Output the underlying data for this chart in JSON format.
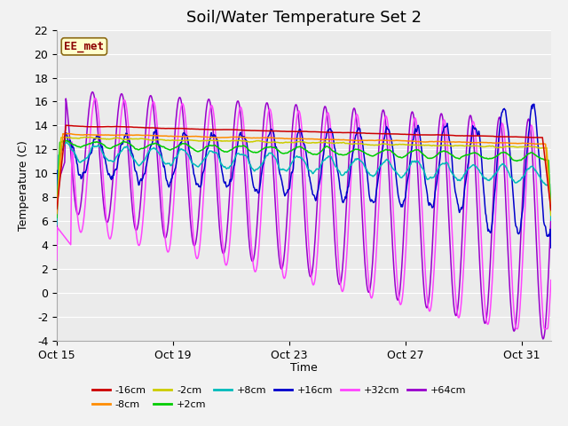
{
  "title": "Soil/Water Temperature Set 2",
  "xlabel": "Time",
  "ylabel": "Temperature (C)",
  "ylim": [
    -4,
    22
  ],
  "xlim": [
    0,
    17
  ],
  "yticks": [
    -4,
    -2,
    0,
    2,
    4,
    6,
    8,
    10,
    12,
    14,
    16,
    18,
    20,
    22
  ],
  "xtick_labels": [
    "Oct 15",
    "Oct 19",
    "Oct 23",
    "Oct 27",
    "Oct 31"
  ],
  "xtick_positions": [
    0,
    4,
    8,
    12,
    16
  ],
  "annotation_text": "EE_met",
  "annotation_bg": "#FFFFCC",
  "annotation_border": "#8B6914",
  "colors": {
    "n16": "#CC0000",
    "n8": "#FF8C00",
    "n2": "#CCCC00",
    "p2": "#00CC00",
    "p8": "#00BBBB",
    "p16": "#0000CC",
    "p32": "#FF44FF",
    "p64": "#9900CC"
  },
  "background_color": "#F2F2F2",
  "plot_bg": "#EBEBEB",
  "grid_color": "#FFFFFF",
  "title_fontsize": 13,
  "label_fontsize": 9,
  "tick_fontsize": 9
}
